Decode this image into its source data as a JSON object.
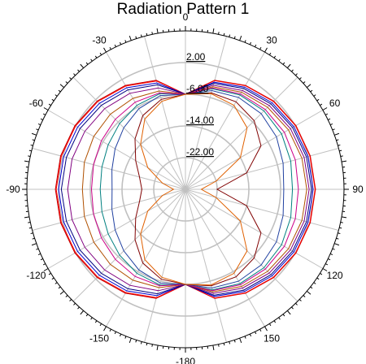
{
  "chart_data": {
    "type": "polar-line",
    "title": "Radiation Pattern 1",
    "angle_ticks": [
      {
        "deg": 0,
        "label": "0"
      },
      {
        "deg": 30,
        "label": "30"
      },
      {
        "deg": 60,
        "label": "60"
      },
      {
        "deg": 90,
        "label": "90"
      },
      {
        "deg": 120,
        "label": "120"
      },
      {
        "deg": 150,
        "label": "150"
      },
      {
        "deg": 180,
        "label": "-180"
      },
      {
        "deg": -150,
        "label": "-150"
      },
      {
        "deg": -120,
        "label": "-120"
      },
      {
        "deg": -90,
        "label": "-90"
      },
      {
        "deg": -60,
        "label": "-60"
      },
      {
        "deg": -30,
        "label": "-30"
      }
    ],
    "radial_ticks": [
      {
        "value": 2.0,
        "label": "2.00"
      },
      {
        "value": -6.0,
        "label": "-6.00"
      },
      {
        "value": -14.0,
        "label": "-14.00"
      },
      {
        "value": -22.0,
        "label": "-22.00"
      }
    ],
    "radial_range": [
      -30,
      10
    ],
    "grid": true,
    "grid_color": "#c0c0c0",
    "angles": [
      -180,
      -165,
      -150,
      -135,
      -120,
      -105,
      -90,
      -75,
      -60,
      -45,
      -30,
      -15,
      0,
      15,
      30,
      45,
      60,
      75,
      90,
      105,
      120,
      135,
      150,
      165,
      180
    ],
    "series": [
      {
        "color": "#c00000",
        "values": [
          -6,
          -1.5,
          0.3,
          1.5,
          2.2,
          2.6,
          2.8,
          2.6,
          2.2,
          1.5,
          0.3,
          -1.5,
          -6,
          -1.5,
          0.3,
          1.5,
          2.2,
          2.6,
          2.8,
          2.6,
          2.2,
          1.5,
          0.3,
          -1.5,
          -6
        ]
      },
      {
        "color": "#ff0000",
        "values": [
          -6,
          -1.7,
          0.1,
          1.3,
          2.0,
          2.4,
          2.6,
          2.4,
          2.0,
          1.3,
          0.1,
          -1.7,
          -6,
          -1.6,
          0.2,
          1.4,
          2.1,
          2.5,
          2.7,
          2.5,
          2.1,
          1.4,
          0.2,
          -1.6,
          -6
        ]
      },
      {
        "color": "#0000cc",
        "values": [
          -6,
          -2.2,
          -0.4,
          0.7,
          1.4,
          1.8,
          2.0,
          1.8,
          1.4,
          0.7,
          -0.4,
          -2.2,
          -6,
          -2.0,
          -0.2,
          0.9,
          1.6,
          2.0,
          2.2,
          2.0,
          1.6,
          0.9,
          -0.2,
          -2.0,
          -6
        ]
      },
      {
        "color": "#000080",
        "values": [
          -6,
          -2.7,
          -1.0,
          0.0,
          0.7,
          1.1,
          1.3,
          1.1,
          0.7,
          0.0,
          -1.0,
          -2.7,
          -6,
          -2.3,
          -0.6,
          0.5,
          1.2,
          1.6,
          1.8,
          1.6,
          1.2,
          0.5,
          -0.6,
          -2.3,
          -6
        ]
      },
      {
        "color": "#800080",
        "values": [
          -6,
          -3.5,
          -2.0,
          -1.2,
          -0.7,
          -0.4,
          -0.3,
          -0.4,
          -0.7,
          -1.2,
          -2.0,
          -3.5,
          -6,
          -2.8,
          -1.2,
          -0.1,
          0.6,
          1.0,
          1.2,
          1.0,
          0.6,
          -0.1,
          -1.2,
          -2.8,
          -6
        ]
      },
      {
        "color": "#b05000",
        "values": [
          -6,
          -4.3,
          -3.5,
          -3.2,
          -3.3,
          -3.6,
          -4.0,
          -3.6,
          -3.3,
          -3.2,
          -3.5,
          -4.3,
          -6,
          -3.2,
          -1.7,
          -0.7,
          0.0,
          0.4,
          0.6,
          0.4,
          0.0,
          -0.7,
          -1.7,
          -3.2,
          -6
        ]
      },
      {
        "color": "#008080",
        "values": [
          -6,
          -5.0,
          -5.5,
          -6.5,
          -7.5,
          -8.2,
          -8.5,
          -8.2,
          -7.5,
          -6.5,
          -5.5,
          -5.0,
          -6,
          -3.7,
          -2.5,
          -2.0,
          -2.0,
          -2.5,
          -3.0,
          -2.5,
          -2.0,
          -2.0,
          -2.5,
          -3.7,
          -6
        ]
      },
      {
        "color": "#cc0088",
        "values": [
          -6,
          -4.8,
          -4.6,
          -5.0,
          -5.5,
          -6.0,
          -6.3,
          -6.0,
          -5.5,
          -5.0,
          -4.6,
          -4.8,
          -6,
          -3.5,
          -2.2,
          -1.5,
          -1.2,
          -1.3,
          -1.5,
          -1.3,
          -1.2,
          -1.5,
          -2.2,
          -3.5,
          -6
        ]
      },
      {
        "color": "#2040a0",
        "values": [
          -6,
          -5.5,
          -6.5,
          -8.0,
          -9.5,
          -10.8,
          -11.5,
          -10.8,
          -9.5,
          -8.0,
          -6.5,
          -5.5,
          -6,
          -4.2,
          -3.2,
          -3.0,
          -3.5,
          -4.5,
          -5.2,
          -4.5,
          -3.5,
          -3.0,
          -3.2,
          -4.2,
          -6
        ]
      },
      {
        "color": "#800000",
        "values": [
          -6,
          -6.5,
          -8.5,
          -12,
          -15.5,
          -18.0,
          -19.0,
          -18.0,
          -15.5,
          -12,
          -8.5,
          -6.5,
          -6,
          -4.8,
          -4.5,
          -5.5,
          -8.0,
          -14.0,
          -22.0,
          -14.0,
          -8.0,
          -5.5,
          -4.5,
          -4.8,
          -6
        ]
      },
      {
        "color": "#e06000",
        "values": [
          -6,
          -7.0,
          -9.5,
          -14,
          -19.0,
          -24.0,
          -27.0,
          -24.0,
          -19.0,
          -14,
          -9.5,
          -7.0,
          -6,
          -5.0,
          -5.5,
          -8.0,
          -14.0,
          -22.0,
          -26.0,
          -22.0,
          -14.0,
          -8.0,
          -5.5,
          -5.0,
          -6
        ]
      }
    ]
  }
}
